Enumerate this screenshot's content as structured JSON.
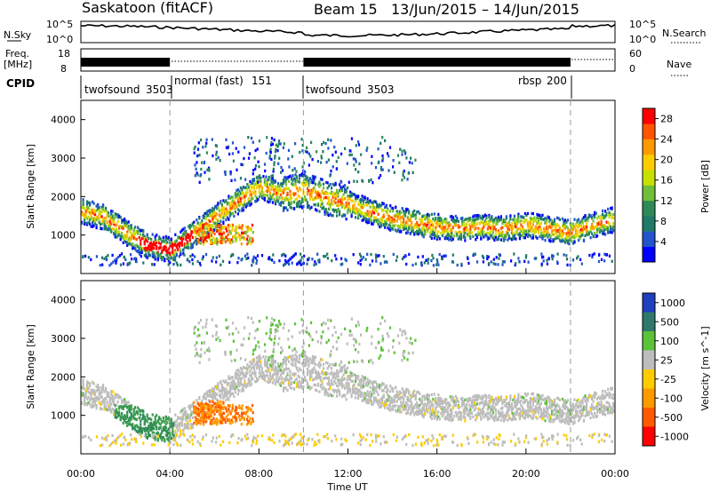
{
  "header": {
    "radar": "Saskatoon (fitACF)",
    "beam": "Beam 15",
    "date_range": "13/Jun/2015 – 14/Jun/2015"
  },
  "noise_panel": {
    "left_label": "N.Sky",
    "right_label": "N.Search",
    "left_ticks": [
      "10^5",
      "10^0"
    ],
    "right_ticks": [
      "10^5",
      "10^0"
    ]
  },
  "freq_panel": {
    "left_label_1": "Freq.",
    "left_label_2": "[MHz]",
    "right_label": "Nave",
    "left_ticks": [
      18,
      8
    ],
    "right_ticks": [
      60,
      0
    ]
  },
  "cpid": {
    "label": "CPID",
    "segments": [
      {
        "name": "twofsound",
        "id": "3503",
        "start": 0,
        "end": 4
      },
      {
        "name": "normal (fast)",
        "id": "151",
        "start": 4,
        "end": 10
      },
      {
        "name": "twofsound",
        "id": "3503",
        "start": 10,
        "end": 22
      },
      {
        "name": "rbsp",
        "id": "200",
        "start": 22,
        "end": 24
      }
    ]
  },
  "chart_data": [
    {
      "type": "heatmap",
      "name": "power",
      "ylabel": "Slant Range [km]",
      "ylim": [
        0,
        4500
      ],
      "yticks": [
        1000,
        2000,
        3000,
        4000
      ],
      "colorbar": {
        "label": "Power [dB]",
        "range": [
          0,
          30
        ],
        "ticks": [
          4,
          8,
          12,
          16,
          20,
          24,
          28
        ],
        "colors": [
          "#0000ff",
          "#2255cc",
          "#1f7a6a",
          "#2e8b57",
          "#6fbf3a",
          "#c8e000",
          "#ffcc00",
          "#ff9900",
          "#ff5500",
          "#ff0000"
        ]
      },
      "echo_band": {
        "hours": [
          0,
          1,
          2,
          3,
          4,
          5,
          6,
          7,
          8,
          9,
          10,
          11,
          12,
          13,
          14,
          15,
          16,
          17,
          18,
          19,
          20,
          21,
          22,
          23,
          24
        ],
        "range_km": [
          1650,
          1500,
          1100,
          750,
          650,
          1050,
          1500,
          1900,
          2300,
          2100,
          2200,
          2000,
          1850,
          1650,
          1450,
          1350,
          1250,
          1200,
          1250,
          1200,
          1300,
          1200,
          1100,
          1300,
          1450
        ]
      }
    },
    {
      "type": "heatmap",
      "name": "velocity",
      "ylabel": "Slant Range [km]",
      "xlabel": "Time UT",
      "ylim": [
        0,
        4500
      ],
      "yticks": [
        1000,
        2000,
        3000,
        4000
      ],
      "xticks": [
        "00:00",
        "04:00",
        "08:00",
        "12:00",
        "16:00",
        "20:00",
        "00:00"
      ],
      "colorbar": {
        "label": "Velocity [m s^-1]",
        "ticks": [
          1000,
          500,
          100,
          25,
          -25,
          -100,
          -500,
          -1000
        ],
        "colors": [
          "#1f3fbf",
          "#2e7a6a",
          "#5cc23a",
          "#bdbdbd",
          "#ffcc00",
          "#ff9900",
          "#ff5a00",
          "#ff0000"
        ]
      }
    }
  ]
}
